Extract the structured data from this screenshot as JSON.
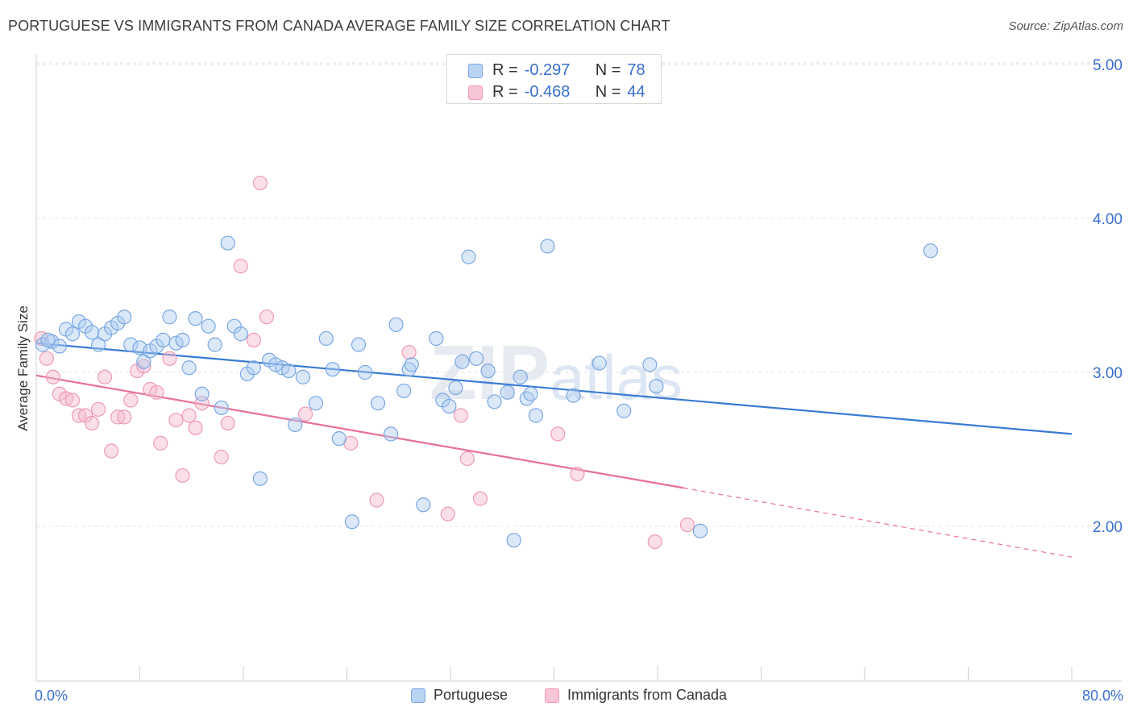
{
  "title": "PORTUGUESE VS IMMIGRANTS FROM CANADA AVERAGE FAMILY SIZE CORRELATION CHART",
  "source": "Source: ZipAtlas.com",
  "watermark": "ZIPatlas",
  "colors": {
    "blue": "#3a7bd5",
    "blue_fill": "#aecbf0",
    "pink": "#e8709a",
    "pink_fill": "#f5b8cb",
    "tick_label": "#3a6fd0"
  },
  "legend_stats": {
    "portuguese": {
      "r_label": "R =",
      "r_value": "-0.297",
      "n_label": "N =",
      "n_value": "78"
    },
    "canada": {
      "r_label": "R =",
      "r_value": "-0.468",
      "n_label": "N =",
      "n_value": "44"
    }
  },
  "chart_data": {
    "type": "scatter",
    "xlabel": "",
    "ylabel": "Average Family Size",
    "xlim": [
      0,
      80
    ],
    "ylim": [
      1.0,
      5.1
    ],
    "x_tick_labels": {
      "min": "0.0%",
      "max": "80.0%"
    },
    "y_ticks": [
      2.0,
      3.0,
      4.0,
      5.0
    ],
    "y_tick_labels": [
      "2.00",
      "3.00",
      "4.00",
      "5.00"
    ],
    "grid": true,
    "legend_position": "top-center",
    "series": [
      {
        "name": "Portuguese",
        "color": "#3a7bd5",
        "trend": {
          "x0": 0,
          "y0": 3.19,
          "x1": 80,
          "y1": 2.6
        },
        "points": [
          [
            0.5,
            3.18
          ],
          [
            1.2,
            3.2
          ],
          [
            1.8,
            3.17
          ],
          [
            2.3,
            3.28
          ],
          [
            2.8,
            3.25
          ],
          [
            3.3,
            3.33
          ],
          [
            3.8,
            3.3
          ],
          [
            4.3,
            3.26
          ],
          [
            4.8,
            3.18
          ],
          [
            5.3,
            3.25
          ],
          [
            5.8,
            3.29
          ],
          [
            6.3,
            3.32
          ],
          [
            6.8,
            3.36
          ],
          [
            7.3,
            3.18
          ],
          [
            8.0,
            3.16
          ],
          [
            8.3,
            3.07
          ],
          [
            8.8,
            3.14
          ],
          [
            9.3,
            3.17
          ],
          [
            9.8,
            3.21
          ],
          [
            10.3,
            3.36
          ],
          [
            10.8,
            3.19
          ],
          [
            11.3,
            3.21
          ],
          [
            11.8,
            3.03
          ],
          [
            12.3,
            3.35
          ],
          [
            12.8,
            2.86
          ],
          [
            13.3,
            3.3
          ],
          [
            13.8,
            3.18
          ],
          [
            14.3,
            2.77
          ],
          [
            14.8,
            3.84
          ],
          [
            15.3,
            3.3
          ],
          [
            15.8,
            3.25
          ],
          [
            16.3,
            2.99
          ],
          [
            16.8,
            3.03
          ],
          [
            17.3,
            2.31
          ],
          [
            18.0,
            3.08
          ],
          [
            18.5,
            3.05
          ],
          [
            19.0,
            3.03
          ],
          [
            19.5,
            3.01
          ],
          [
            20.0,
            2.66
          ],
          [
            20.6,
            2.97
          ],
          [
            21.6,
            2.8
          ],
          [
            22.4,
            3.22
          ],
          [
            22.9,
            3.02
          ],
          [
            23.4,
            2.57
          ],
          [
            24.4,
            2.03
          ],
          [
            24.9,
            3.18
          ],
          [
            25.4,
            3.0
          ],
          [
            26.4,
            2.8
          ],
          [
            27.4,
            2.6
          ],
          [
            27.8,
            3.31
          ],
          [
            28.4,
            2.88
          ],
          [
            28.8,
            3.02
          ],
          [
            29.0,
            3.05
          ],
          [
            29.9,
            2.14
          ],
          [
            30.9,
            3.22
          ],
          [
            31.4,
            2.82
          ],
          [
            31.9,
            2.78
          ],
          [
            32.4,
            2.9
          ],
          [
            32.9,
            3.07
          ],
          [
            33.4,
            3.75
          ],
          [
            34.0,
            3.09
          ],
          [
            34.9,
            3.01
          ],
          [
            35.4,
            2.81
          ],
          [
            36.4,
            2.87
          ],
          [
            36.9,
            1.91
          ],
          [
            37.4,
            2.97
          ],
          [
            37.9,
            2.83
          ],
          [
            38.2,
            2.86
          ],
          [
            38.6,
            2.72
          ],
          [
            39.5,
            3.82
          ],
          [
            41.5,
            2.85
          ],
          [
            43.5,
            3.06
          ],
          [
            45.4,
            2.75
          ],
          [
            47.4,
            3.05
          ],
          [
            47.9,
            2.91
          ],
          [
            51.3,
            1.97
          ],
          [
            69.1,
            3.79
          ],
          [
            0.9,
            3.21
          ]
        ]
      },
      {
        "name": "Immigrants from Canada",
        "color": "#e8709a",
        "trend": {
          "x0": 0,
          "y0": 2.98,
          "x1": 50,
          "y1": 2.25
        },
        "trend_dashed": {
          "x0": 50,
          "y0": 2.25,
          "x1": 80,
          "y1": 1.8
        },
        "points": [
          [
            0.4,
            3.22
          ],
          [
            0.8,
            3.09
          ],
          [
            1.3,
            2.97
          ],
          [
            1.8,
            2.86
          ],
          [
            2.3,
            2.83
          ],
          [
            2.8,
            2.82
          ],
          [
            3.3,
            2.72
          ],
          [
            3.8,
            2.72
          ],
          [
            4.3,
            2.67
          ],
          [
            4.8,
            2.76
          ],
          [
            5.3,
            2.97
          ],
          [
            5.8,
            2.49
          ],
          [
            6.3,
            2.71
          ],
          [
            6.8,
            2.71
          ],
          [
            7.3,
            2.82
          ],
          [
            7.8,
            3.01
          ],
          [
            8.3,
            3.04
          ],
          [
            8.8,
            2.89
          ],
          [
            9.3,
            2.87
          ],
          [
            9.6,
            2.54
          ],
          [
            10.3,
            3.09
          ],
          [
            10.8,
            2.69
          ],
          [
            11.3,
            2.33
          ],
          [
            11.8,
            2.72
          ],
          [
            12.3,
            2.64
          ],
          [
            12.8,
            2.8
          ],
          [
            14.3,
            2.45
          ],
          [
            14.8,
            2.67
          ],
          [
            15.8,
            3.69
          ],
          [
            16.8,
            3.21
          ],
          [
            17.3,
            4.23
          ],
          [
            17.8,
            3.36
          ],
          [
            20.8,
            2.73
          ],
          [
            24.3,
            2.54
          ],
          [
            26.3,
            2.17
          ],
          [
            28.8,
            3.13
          ],
          [
            31.8,
            2.08
          ],
          [
            32.8,
            2.72
          ],
          [
            33.3,
            2.44
          ],
          [
            34.3,
            2.18
          ],
          [
            40.3,
            2.6
          ],
          [
            41.8,
            2.34
          ],
          [
            47.8,
            1.9
          ],
          [
            50.3,
            2.01
          ]
        ]
      }
    ]
  }
}
